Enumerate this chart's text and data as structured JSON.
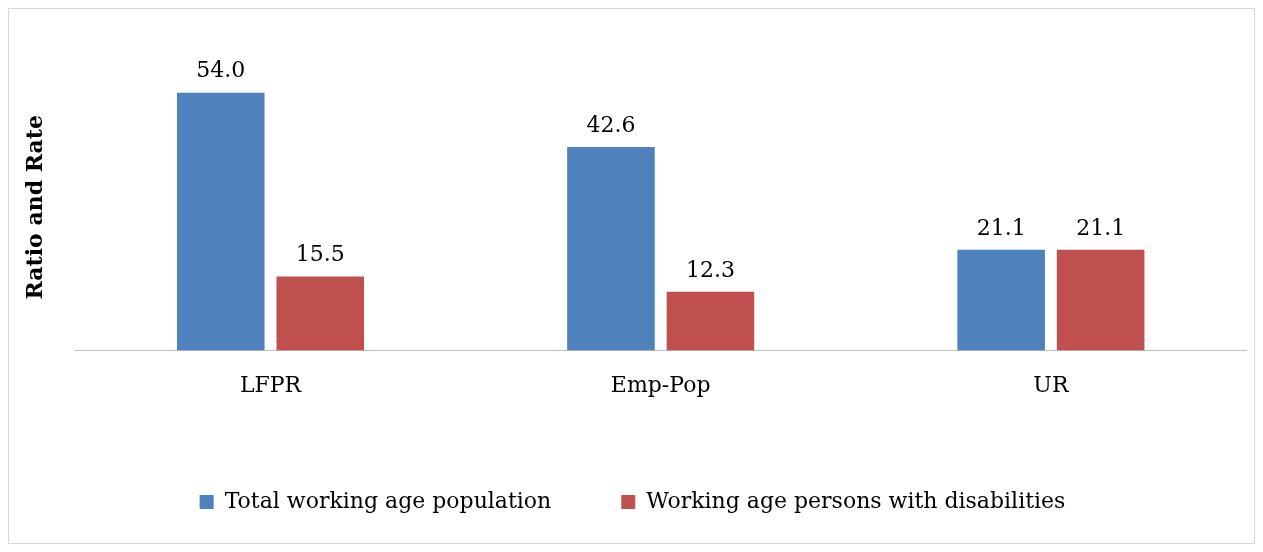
{
  "chart_data": {
    "type": "bar",
    "ylabel": "Ratio and Rate",
    "categories": [
      "LFPR",
      "Emp-Pop",
      "UR"
    ],
    "series": [
      {
        "name": "Total working age population",
        "color": "#4f81bd",
        "values": [
          54.0,
          42.6,
          21.1
        ],
        "value_labels": [
          "54.0",
          "42.6",
          "21.1"
        ]
      },
      {
        "name": "Working age persons with disabilities",
        "color": "#c0504d",
        "values": [
          15.5,
          12.3,
          21.1
        ],
        "value_labels": [
          "15.5",
          "12.3",
          "21.1"
        ]
      }
    ],
    "grid": false,
    "legend": "bottom",
    "tick_labels": "x"
  }
}
